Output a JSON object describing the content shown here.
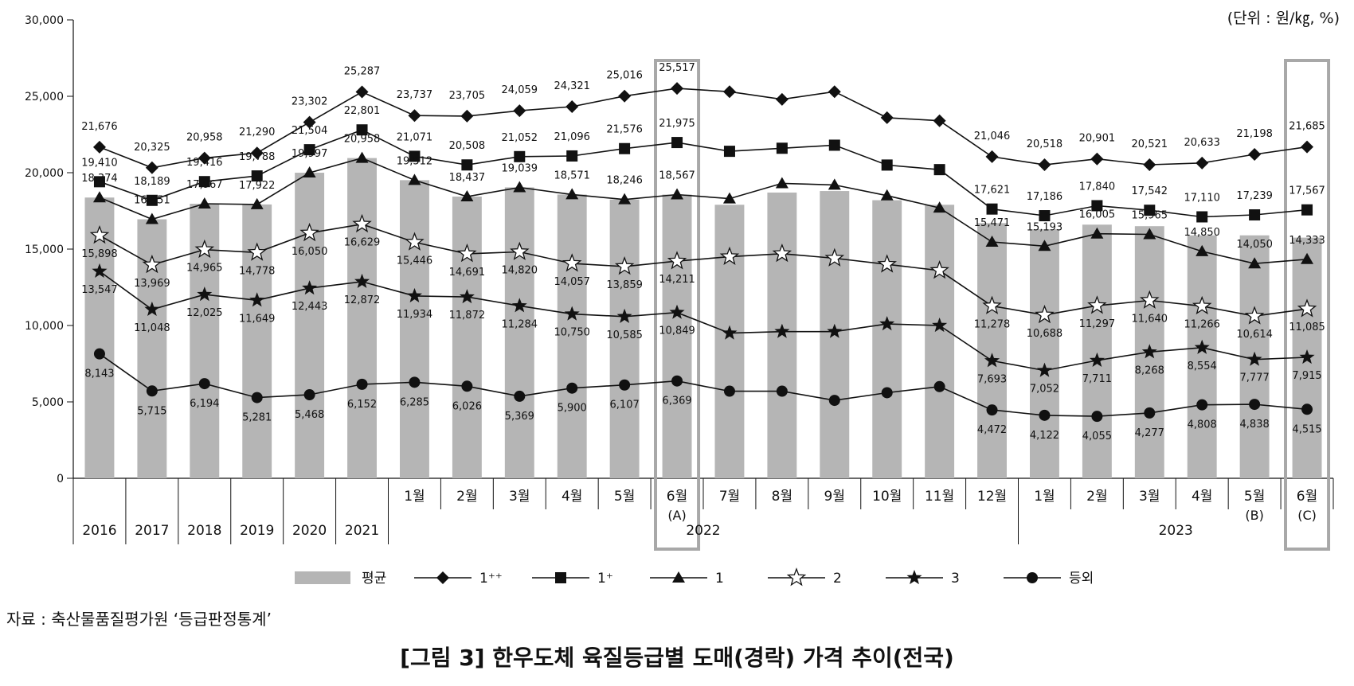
{
  "unit_label": "(단위 : 원/㎏, %)",
  "source_label": "자료 : 축산물품질평가원 ‘등급판정통계’",
  "caption": "[그림 3] 한우도체 육질등급별 도매(경락) 가격 추이(전국)",
  "chart_data": {
    "type": "bar+line",
    "ylim": [
      0,
      30000
    ],
    "yticks": [
      "0",
      "5,000",
      "10,000",
      "15,000",
      "20,000",
      "25,000",
      "30,000"
    ],
    "categories": [
      "2016",
      "2017",
      "2018",
      "2019",
      "2020",
      "2021",
      "1월",
      "2월",
      "3월",
      "4월",
      "5월",
      "6월",
      "7월",
      "8월",
      "9월",
      "10월",
      "11월",
      "12월",
      "1월",
      "2월",
      "3월",
      "4월",
      "5월",
      "6월"
    ],
    "category_sublabels": [
      "",
      "",
      "",
      "",
      "",
      "",
      "",
      "",
      "",
      "",
      "",
      "(A)",
      "",
      "",
      "",
      "",
      "",
      "",
      "",
      "",
      "",
      "",
      "(B)",
      "(C)"
    ],
    "year_groups": [
      {
        "label": "2022",
        "start": 6,
        "end": 17
      },
      {
        "label": "2023",
        "start": 18,
        "end": 23
      }
    ],
    "highlight_boxes": [
      11,
      23
    ],
    "bar_series": {
      "name": "평균",
      "color": "#b5b5b5",
      "values": [
        18374,
        16951,
        17967,
        17922,
        19997,
        20958,
        19512,
        18437,
        19039,
        18571,
        18246,
        18567,
        17900,
        18700,
        18800,
        18200,
        17900,
        16700,
        16300,
        16600,
        16500,
        15900,
        15900,
        15750
      ]
    },
    "series": [
      {
        "name": "1⁺⁺",
        "marker": "diamond",
        "values": [
          21676,
          20325,
          20958,
          21290,
          23302,
          25287,
          23737,
          23705,
          24059,
          24321,
          25016,
          25517,
          25300,
          24800,
          25300,
          23600,
          23400,
          21046,
          20518,
          20901,
          20521,
          20633,
          21198,
          21685
        ],
        "labels": [
          "21,676",
          "20,325",
          "20,958",
          "21,290",
          "23,302",
          "25,287",
          "23,737",
          "23,705",
          "24,059",
          "24,321",
          "25,016",
          "25,517",
          "",
          "",
          "",
          "",
          "",
          "21,046",
          "20,518",
          "20,901",
          "20,521",
          "20,633",
          "21,198",
          "21,685"
        ]
      },
      {
        "name": "1⁺",
        "marker": "square",
        "values": [
          19410,
          18189,
          19416,
          19788,
          21504,
          22801,
          21071,
          20508,
          21052,
          21096,
          21576,
          21975,
          21400,
          21600,
          21800,
          20500,
          20200,
          17621,
          17186,
          17840,
          17542,
          17110,
          17239,
          17567
        ],
        "labels": [
          "19,410",
          "18,189",
          "19,416",
          "19,788",
          "21,504",
          "22,801",
          "21,071",
          "20,508",
          "21,052",
          "21,096",
          "21,576",
          "21,975",
          "",
          "",
          "",
          "",
          "",
          "17,621",
          "17,186",
          "17,840",
          "17,542",
          "17,110",
          "17,239",
          "17,567"
        ]
      },
      {
        "name": "1",
        "marker": "triangle",
        "values": [
          18374,
          16951,
          17967,
          17922,
          19997,
          20958,
          19512,
          18437,
          19039,
          18571,
          18246,
          18567,
          18300,
          19300,
          19200,
          18500,
          17700,
          15471,
          15193,
          16005,
          15965,
          14850,
          14050,
          14333
        ],
        "labels": [
          "18,374",
          "16,951",
          "17,967",
          "17,922",
          "19,997",
          "20,958",
          "19,512",
          "18,437",
          "19,039",
          "18,571",
          "18,246",
          "18,567",
          "",
          "",
          "",
          "",
          "",
          "15,471",
          "15,193",
          "16,005",
          "15,965",
          "14,850",
          "14,050",
          "14,333"
        ]
      },
      {
        "name": "2",
        "marker": "star-open",
        "values": [
          15898,
          13969,
          14965,
          14778,
          16050,
          16629,
          15446,
          14691,
          14820,
          14057,
          13859,
          14211,
          14500,
          14700,
          14400,
          14000,
          13600,
          11278,
          10688,
          11297,
          11640,
          11266,
          10614,
          11085
        ],
        "labels": [
          "15,898",
          "13,969",
          "14,965",
          "14,778",
          "16,050",
          "16,629",
          "15,446",
          "14,691",
          "14,820",
          "14,057",
          "13,859",
          "14,211",
          "",
          "",
          "",
          "",
          "",
          "11,278",
          "10,688",
          "11,297",
          "11,640",
          "11,266",
          "10,614",
          "11,085"
        ]
      },
      {
        "name": "3",
        "marker": "star-filled",
        "values": [
          13547,
          11048,
          12025,
          11649,
          12443,
          12872,
          11934,
          11872,
          11284,
          10750,
          10585,
          10849,
          9500,
          9600,
          9600,
          10100,
          10000,
          7693,
          7052,
          7711,
          8268,
          8554,
          7777,
          7915
        ],
        "labels": [
          "13,547",
          "11,048",
          "12,025",
          "11,649",
          "12,443",
          "12,872",
          "11,934",
          "11,872",
          "11,284",
          "10,750",
          "10,585",
          "10,849",
          "",
          "",
          "",
          "",
          "",
          "7,693",
          "7,052",
          "7,711",
          "8,268",
          "8,554",
          "7,777",
          "7,915"
        ]
      },
      {
        "name": "등외",
        "marker": "circle",
        "values": [
          8143,
          5715,
          6194,
          5281,
          5468,
          6152,
          6285,
          6026,
          5369,
          5900,
          6107,
          6369,
          5700,
          5700,
          5100,
          5600,
          6000,
          4472,
          4122,
          4055,
          4277,
          4808,
          4838,
          4515
        ],
        "labels": [
          "8,143",
          "5,715",
          "6,194",
          "5,281",
          "5,468",
          "6,152",
          "6,285",
          "6,026",
          "5,369",
          "5,900",
          "6,107",
          "6,369",
          "",
          "",
          "",
          "",
          "",
          "4,472",
          "4,122",
          "4,055",
          "4,277",
          "4,808",
          "4,838",
          "4,515"
        ]
      }
    ],
    "legend": [
      "평균",
      "1⁺⁺",
      "1⁺",
      "1",
      "2",
      "3",
      "등외"
    ],
    "legend_placement": "bottom"
  }
}
